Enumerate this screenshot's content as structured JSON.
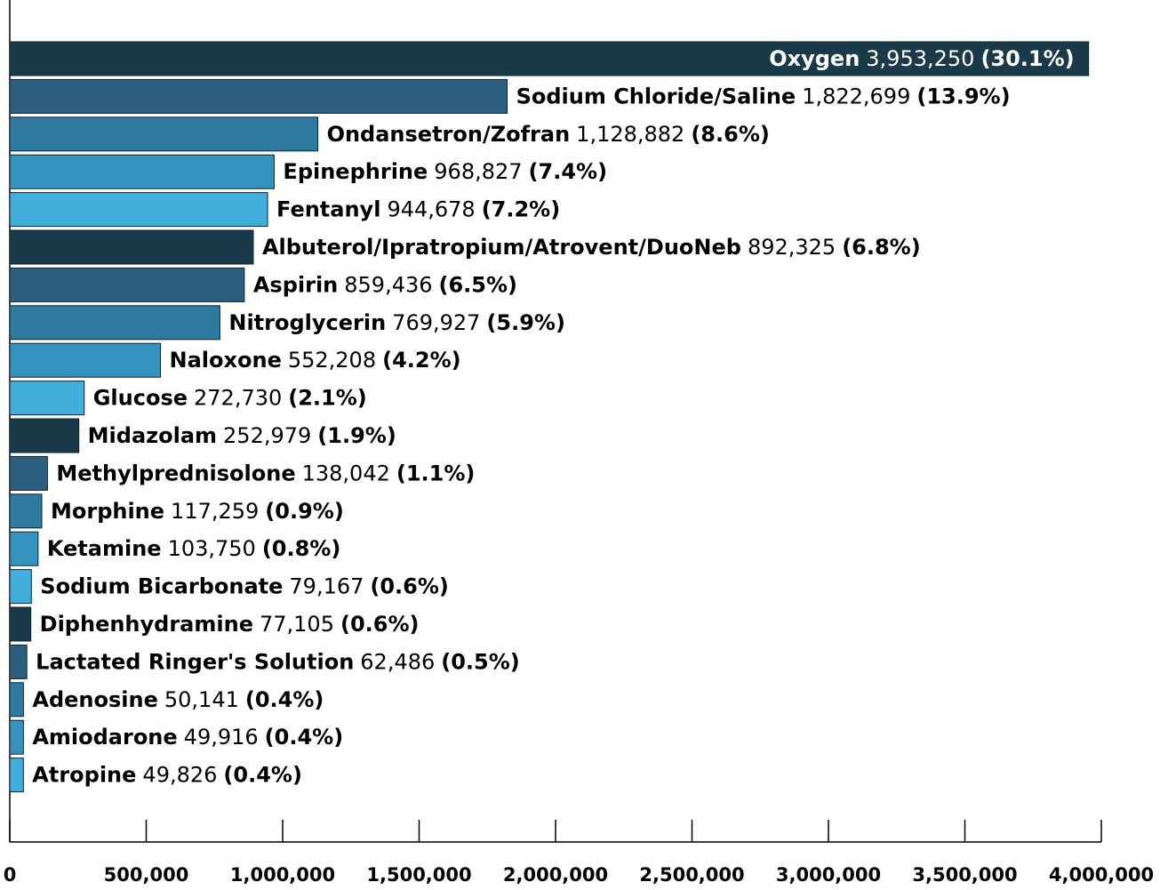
{
  "chart_data": {
    "type": "barh",
    "categories": [
      "Oxygen",
      "Sodium Chloride/Saline",
      "Ondansetron/Zofran",
      "Epinephrine",
      "Fentanyl",
      "Albuterol/Ipratropium/Atrovent/DuoNeb",
      "Aspirin",
      "Nitroglycerin",
      "Naloxone",
      "Glucose",
      "Midazolam",
      "Methylprednisolone",
      "Morphine",
      "Ketamine",
      "Sodium Bicarbonate",
      "Diphenhydramine",
      "Lactated Ringer's Solution",
      "Adenosine",
      "Amiodarone",
      "Atropine"
    ],
    "values": [
      3953250,
      1822699,
      1128882,
      968827,
      944678,
      892325,
      859436,
      769927,
      552208,
      272730,
      252979,
      138042,
      117259,
      103750,
      79167,
      77105,
      62486,
      50141,
      49916,
      49826
    ],
    "value_labels": [
      "3,953,250",
      "1,822,699",
      "1,128,882",
      "968,827",
      "944,678",
      "892,325",
      "859,436",
      "769,927",
      "552,208",
      "272,730",
      "252,979",
      "138,042",
      "117,259",
      "103,750",
      "79,167",
      "77,105",
      "62,486",
      "50,141",
      "49,916",
      "49,826"
    ],
    "share_labels": [
      "(30.1%)",
      "(13.9%)",
      "(8.6%)",
      "(7.4%)",
      "(7.2%)",
      "(6.8%)",
      "(6.5%)",
      "(5.9%)",
      "(4.2%)",
      "(2.1%)",
      "(1.9%)",
      "(1.1%)",
      "(0.9%)",
      "(0.8%)",
      "(0.6%)",
      "(0.6%)",
      "(0.5%)",
      "(0.4%)",
      "(0.4%)",
      "(0.4%)"
    ],
    "colors": [
      "#1b3a49",
      "#2c5f7e",
      "#2f7b9f",
      "#3592bf",
      "#42aedb"
    ],
    "xlim": [
      0,
      4000000
    ],
    "xticks": [
      0,
      {
        "value": 500000,
        "label": "500,000"
      },
      {
        "value": 1000000,
        "label": "1,000,000"
      },
      {
        "value": 1500000,
        "label": "1,500,000"
      },
      {
        "value": 2000000,
        "label": "2,000,000"
      },
      {
        "value": 2500000,
        "label": "2,500,000"
      },
      {
        "value": 3000000,
        "label": "3,000,000"
      },
      {
        "value": 3500000,
        "label": "3,500,000"
      },
      {
        "value": 4000000,
        "label": "4,000,000"
      }
    ]
  }
}
